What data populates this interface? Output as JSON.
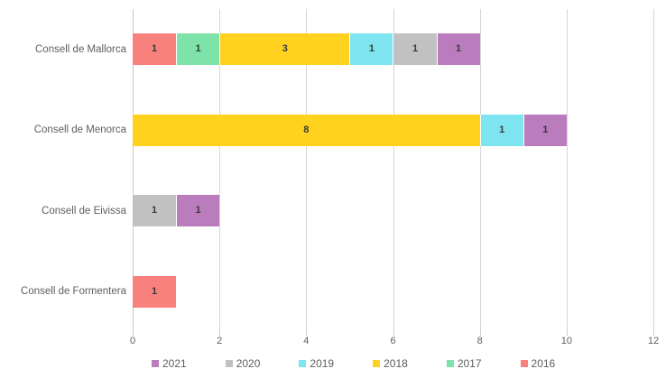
{
  "chart_data": {
    "type": "bar",
    "orientation": "horizontal-stacked",
    "title": "",
    "xlabel": "",
    "ylabel": "",
    "xlim": [
      0,
      12
    ],
    "x_ticks": [
      0,
      2,
      4,
      6,
      8,
      10,
      12
    ],
    "grid": "vertical",
    "legend_position": "bottom",
    "legend_order": [
      "2021",
      "2020",
      "2019",
      "2018",
      "2017",
      "2016"
    ],
    "categories": [
      "Consell de Mallorca",
      "Consell de Menorca",
      "Consell de Eivissa",
      "Consell de Formentera"
    ],
    "series": [
      {
        "name": "2016",
        "color": "#f8807d",
        "values": [
          1,
          0,
          0,
          1
        ]
      },
      {
        "name": "2017",
        "color": "#7ee3a8",
        "values": [
          1,
          0,
          0,
          0
        ]
      },
      {
        "name": "2018",
        "color": "#ffd21f",
        "values": [
          3,
          8,
          0,
          0
        ]
      },
      {
        "name": "2019",
        "color": "#7ee5f0",
        "values": [
          1,
          1,
          0,
          0
        ]
      },
      {
        "name": "2020",
        "color": "#c1c1c1",
        "values": [
          1,
          0,
          1,
          0
        ]
      },
      {
        "name": "2021",
        "color": "#ba7cbc",
        "values": [
          1,
          1,
          1,
          0
        ]
      }
    ],
    "totals": [
      8,
      10,
      2,
      1
    ],
    "colors": {
      "gridline": "#d6d6d6",
      "axis_text": "#605e5c",
      "segment_label": "#3a3a3a"
    }
  }
}
